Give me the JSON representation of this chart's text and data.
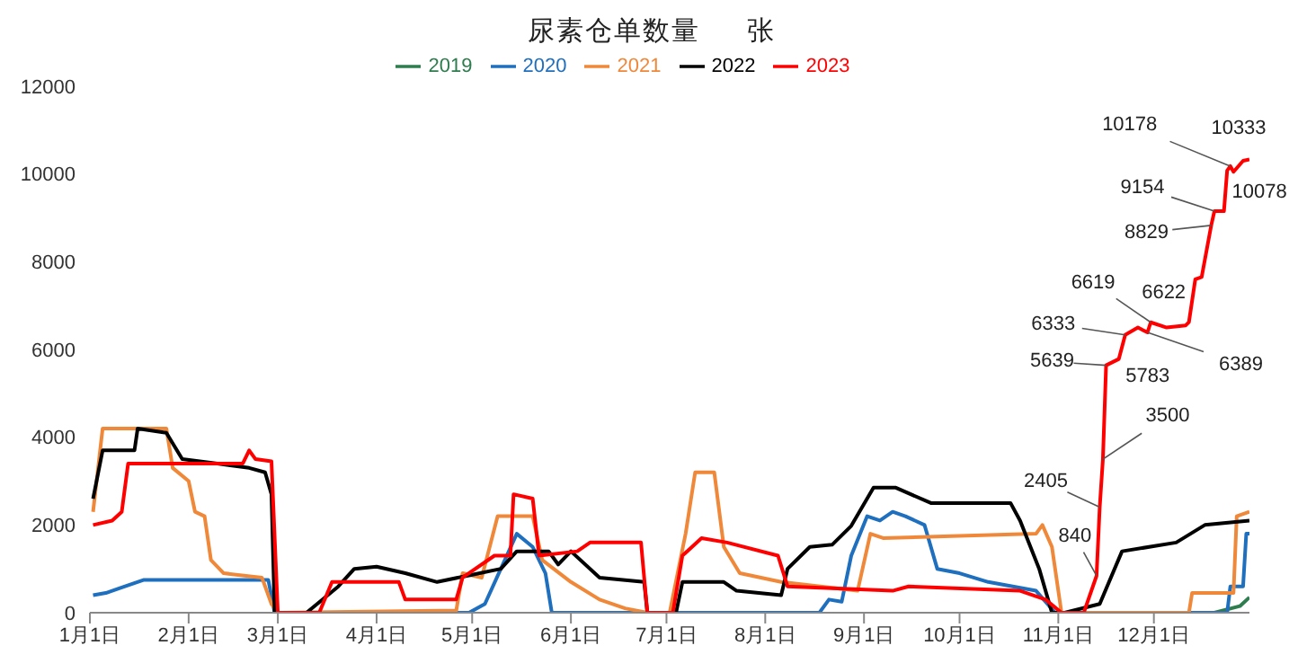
{
  "chart_data": {
    "type": "line",
    "title": "尿素仓单数量     张",
    "legend": "top",
    "grid": false,
    "xlim": [
      "--01-01",
      "--12-31"
    ],
    "xticks": [
      {
        "value": "--01-01",
        "label": "1月1日"
      },
      {
        "value": "--02-01",
        "label": "2月1日"
      },
      {
        "value": "--03-01",
        "label": "3月1日"
      },
      {
        "value": "--04-01",
        "label": "4月1日"
      },
      {
        "value": "--05-01",
        "label": "5月1日"
      },
      {
        "value": "--06-01",
        "label": "6月1日"
      },
      {
        "value": "--07-01",
        "label": "7月1日"
      },
      {
        "value": "--08-01",
        "label": "8月1日"
      },
      {
        "value": "--09-01",
        "label": "9月1日"
      },
      {
        "value": "--10-01",
        "label": "10月1日"
      },
      {
        "value": "--11-01",
        "label": "11月1日"
      },
      {
        "value": "--12-01",
        "label": "12月1日"
      }
    ],
    "ylim": [
      0,
      12000
    ],
    "yticks": [
      0,
      2000,
      4000,
      6000,
      8000,
      10000,
      12000
    ],
    "series": [
      {
        "name": "2019",
        "color": "#2e7d4f",
        "x": [
          "--12-20",
          "--12-28",
          "--12-31"
        ],
        "values": [
          0,
          150,
          350
        ]
      },
      {
        "name": "2020",
        "color": "#1f6fbf",
        "x": [
          "--01-02",
          "--01-06",
          "--01-10",
          "--01-18",
          "--02-26",
          "--02-28",
          "--04-30",
          "--05-05",
          "--05-10",
          "--05-15",
          "--05-20",
          "--05-24",
          "--05-26",
          "--08-18",
          "--08-21",
          "--08-25",
          "--08-28",
          "--09-02",
          "--09-06",
          "--09-10",
          "--09-14",
          "--09-20",
          "--09-24",
          "--10-01",
          "--10-10",
          "--10-25",
          "--10-31",
          "--12-24",
          "--12-25",
          "--12-29",
          "--12-30",
          "--12-31"
        ],
        "values": [
          400,
          450,
          550,
          750,
          750,
          0,
          0,
          200,
          1000,
          1800,
          1500,
          900,
          0,
          0,
          300,
          250,
          1300,
          2200,
          2100,
          2300,
          2200,
          2000,
          1000,
          900,
          700,
          500,
          0,
          0,
          600,
          600,
          1800,
          1800
        ]
      },
      {
        "name": "2021",
        "color": "#f0883a",
        "x": [
          "--01-02",
          "--01-05",
          "--01-25",
          "--01-27",
          "--02-01",
          "--02-03",
          "--02-06",
          "--02-08",
          "--02-12",
          "--02-24",
          "--02-27",
          "--03-01",
          "--04-26",
          "--04-28",
          "--05-04",
          "--05-09",
          "--05-20",
          "--05-23",
          "--06-01",
          "--06-10",
          "--06-18",
          "--06-25",
          "--07-02",
          "--07-07",
          "--07-10",
          "--07-16",
          "--07-19",
          "--07-24",
          "--08-06",
          "--08-30",
          "--09-03",
          "--09-07",
          "--10-25",
          "--10-27",
          "--10-30",
          "--11-02",
          "--12-12",
          "--12-13",
          "--12-26",
          "--12-27",
          "--12-31"
        ],
        "values": [
          2300,
          4200,
          4200,
          3300,
          3000,
          2300,
          2200,
          1200,
          900,
          800,
          200,
          0,
          50,
          900,
          800,
          2200,
          2200,
          1200,
          700,
          300,
          100,
          0,
          0,
          1800,
          3200,
          3200,
          1500,
          900,
          700,
          500,
          1800,
          1700,
          1800,
          2000,
          1500,
          0,
          0,
          450,
          450,
          2200,
          2300
        ]
      },
      {
        "name": "2022",
        "color": "#000000",
        "x": [
          "--01-02",
          "--01-05",
          "--01-15",
          "--01-16",
          "--01-25",
          "--01-30",
          "--02-10",
          "--02-20",
          "--02-25",
          "--02-27",
          "--02-28",
          "--03-10",
          "--03-20",
          "--03-25",
          "--04-01",
          "--04-10",
          "--04-20",
          "--04-30",
          "--05-10",
          "--05-15",
          "--05-25",
          "--05-28",
          "--06-01",
          "--06-10",
          "--06-24",
          "--06-25",
          "--07-04",
          "--07-06",
          "--07-19",
          "--07-23",
          "--08-06",
          "--08-08",
          "--08-15",
          "--08-22",
          "--08-28",
          "--09-04",
          "--09-11",
          "--09-22",
          "--09-23",
          "--10-17",
          "--10-20",
          "--10-26",
          "--10-30",
          "--11-03",
          "--11-14",
          "--11-21",
          "--12-08",
          "--12-17",
          "--12-31"
        ],
        "values": [
          2600,
          3700,
          3700,
          4200,
          4100,
          3500,
          3400,
          3300,
          3200,
          2700,
          0,
          0,
          600,
          1000,
          1050,
          900,
          700,
          850,
          1000,
          1400,
          1400,
          1100,
          1400,
          800,
          700,
          0,
          0,
          700,
          700,
          500,
          400,
          1000,
          1500,
          1550,
          1980,
          2850,
          2850,
          2500,
          2500,
          2500,
          2100,
          1000,
          0,
          0,
          200,
          1400,
          1600,
          2000,
          2100
        ]
      },
      {
        "name": "2023",
        "color": "#ff0000",
        "x": [
          "--01-02",
          "--01-08",
          "--01-11",
          "--01-13",
          "--02-18",
          "--02-20",
          "--02-22",
          "--02-27",
          "--03-01",
          "--03-14",
          "--03-18",
          "--04-08",
          "--04-10",
          "--04-26",
          "--04-28",
          "--05-08",
          "--05-13",
          "--05-14",
          "--05-20",
          "--05-22",
          "--06-03",
          "--06-07",
          "--06-23",
          "--06-25",
          "--07-03",
          "--07-06",
          "--07-12",
          "--07-20",
          "--08-05",
          "--08-08",
          "--09-10",
          "--09-15",
          "--10-20",
          "--10-28",
          "--11-02",
          "--11-09",
          "--11-13",
          "--11-14",
          "--11-15",
          "--11-16",
          "--11-20",
          "--11-22",
          "--11-26",
          "--11-29",
          "--11-30",
          "--12-05",
          "--12-11",
          "--12-12",
          "--12-14",
          "--12-16",
          "--12-19",
          "--12-20",
          "--12-23",
          "--12-24",
          "--12-25",
          "--12-26",
          "--12-29",
          "--12-31"
        ],
        "values": [
          2000,
          2100,
          2300,
          3400,
          3400,
          3700,
          3500,
          3450,
          0,
          0,
          700,
          700,
          300,
          300,
          800,
          1300,
          1300,
          2700,
          2600,
          1300,
          1400,
          1600,
          1600,
          0,
          0,
          1300,
          1700,
          1600,
          1300,
          600,
          500,
          600,
          500,
          300,
          0,
          0,
          840,
          2405,
          3500,
          5639,
          5783,
          6333,
          6500,
          6389,
          6619,
          6500,
          6550,
          6622,
          7600,
          7650,
          8829,
          9154,
          9154,
          10078,
          10178,
          10050,
          10300,
          10333
        ]
      }
    ],
    "annotations": [
      {
        "text": "840",
        "x": "--11-13",
        "y": 840
      },
      {
        "text": "2405",
        "x": "--11-14",
        "y": 2405
      },
      {
        "text": "3500",
        "x": "--11-15",
        "y": 3500
      },
      {
        "text": "5639",
        "x": "--11-16",
        "y": 5639
      },
      {
        "text": "5783",
        "x": "--11-20",
        "y": 5783
      },
      {
        "text": "6333",
        "x": "--11-22",
        "y": 6333
      },
      {
        "text": "6389",
        "x": "--11-29",
        "y": 6389
      },
      {
        "text": "6619",
        "x": "--11-30",
        "y": 6619
      },
      {
        "text": "6622",
        "x": "--12-12",
        "y": 6622
      },
      {
        "text": "8829",
        "x": "--12-19",
        "y": 8829
      },
      {
        "text": "9154",
        "x": "--12-20",
        "y": 9154
      },
      {
        "text": "10078",
        "x": "--12-24",
        "y": 10078
      },
      {
        "text": "10178",
        "x": "--12-25",
        "y": 10178
      },
      {
        "text": "10333",
        "x": "--12-31",
        "y": 10333
      }
    ]
  }
}
